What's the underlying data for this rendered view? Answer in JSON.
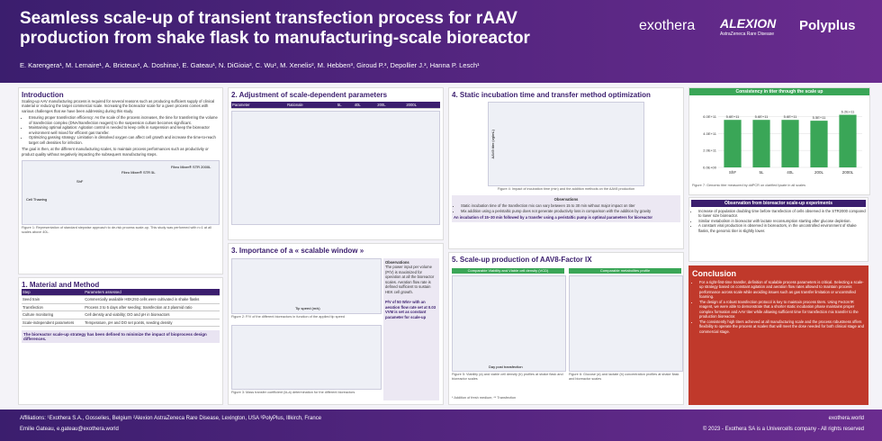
{
  "header": {
    "title": "Seamless scale-up of transient transfection process for rAAV production from shake flask to manufacturing-scale bioreactor",
    "authors": "E. Karengera¹, M. Lemaire¹, A. Bricteux¹, A. Doshina¹, E. Gateau¹, N. DiGioia², C. Wu², M. Xenelis², M. Hebben³, Giroud P.³, Depollier J.³, Hanna P. Lesch¹",
    "logos": [
      "exothera",
      "ALEXION",
      "AstraZeneca Rare Disease",
      "Polyplus"
    ]
  },
  "intro": {
    "heading": "Introduction",
    "text": "Scaling-up AAV manufacturing process is required for several reasons such as producing sufficient supply of clinical material or reducing the target commercial scale. Increasing the bioreactor scale for a given process comes with various challenges that we have been addressing during this study.",
    "bullets": [
      "Ensuring proper transfection efficiency: As the scale of the process increases, the time for transferring the volume of transfection complex (DNA/transfection reagent) to the suspension culture becomes significant.",
      "Maintaining optimal agitation: Agitation control is needed to keep cells in suspension and keep the bioreactor environment well mixed for efficient gas transfer.",
      "Optimizing gassing strategy: Limitation in dissolved oxygen can affect cell growth and increase the time-to-reach target cell densities for infection."
    ],
    "goal": "The goal is then, at the different manufacturing scales, to maintain process performances such as productivity or product quality without negatively impacting the subsequent manufacturing steps."
  },
  "figure1": {
    "labels": [
      "Cell Thawing",
      "ShF",
      "Fibro Mixer® STR 5L",
      "Fibro Mixer® STR 2000L"
    ],
    "caption": "Figure 1: Representation of standard stepwise approach to de-risk process scale-up. This study was performed with n=1 at all scales above 40L."
  },
  "material": {
    "heading": "1. Material and Method",
    "columns": [
      "Step",
      "Parameters assessed"
    ],
    "rows": [
      [
        "Seed train",
        "Commercially available HEK293 cells were cultivated in shake flasks"
      ],
      [
        "Transfection",
        "Process 3 to 5 days after seeding; transfection at 3 plasmid ratio"
      ],
      [
        "Culture monitoring",
        "Cell density and viability; DO and pH in bioreactors"
      ],
      [
        "Scale-independent parameters",
        "Temperature, pH and DO set points, seeding density"
      ]
    ],
    "note": "The bioreactor scale-up strategy has been defined to minimize the impact of bioprocess design differences."
  },
  "adjust": {
    "heading": "2. Adjustment of scale-dependent parameters",
    "columns": [
      "Parameter",
      "Rationale",
      "5L",
      "40L",
      "200L",
      "2000L"
    ]
  },
  "window": {
    "heading": "3. Importance of a « scalable window »",
    "xlabel": "Tip speed (m/s)",
    "caption": "Figure 2: P/V of the different bioreactors in function of the applied tip speed",
    "caption2": "Figure 3: Mass transfer coefficient (kLa) determination for the different bioreactors",
    "obs_heading": "Observations",
    "obs_text": "The power input per volume (P/V) is maximized for operation at all the bioreactor scales. Aeration flow rate is defined sufficient to sustain HEK cell growth.",
    "conclusion": "P/V of 50 W/m³ with an aeration flow rate set at 0.03 VVM is set as constant parameter for scale-up"
  },
  "static": {
    "heading": "4. Static incubation time and transfer method optimization",
    "ylabel": "AAV8 titer (vg/mL)",
    "caption": "Figure 4: Impact of incubation time (min) and the addition methods on the AAV8 production",
    "obs_heading": "Observations",
    "bullets": [
      "Static incubation time of the transfection mix can vary between 15 to 30 min without major impact on titer",
      "Mix addition using a peristaltic pump does not generate productivity loss in comparison with the addition by gravity"
    ],
    "conclusion": "An incubation of 15–30 min followed by a transfer using a peristaltic pump is optimal parameters for bioreactor"
  },
  "scaleup": {
    "heading": "5. Scale-up production of AAV8-Factor IX",
    "panel1": "Comparable Viability and Viable cell density (VCD)",
    "panel2": "Comparable metabolites profile",
    "xlabel": "Day post transfection",
    "caption1": "Figure 5: Viability (a) and viable cell density (b) profiles at shake flask and bioreactor scales",
    "caption2": "Figure 6: Glucose (a) and lactate (b) concentration profiles at shake flask and bioreactor scales",
    "note": "* Addition of fresh medium; ** Transfection"
  },
  "consistency": {
    "heading": "Consistency in titer through the scale up",
    "categories": [
      "ShF",
      "5L",
      "40L",
      "200L",
      "2000L"
    ],
    "values": [
      560000000000,
      560000000000,
      560000000000,
      550000000000,
      620000000000
    ],
    "value_labels": [
      "5.6E+11",
      "5.6E+11",
      "5.6E+11",
      "5.5E+11",
      "6.2E+11"
    ],
    "ylim": [
      0,
      700000000000
    ],
    "yticks": [
      {
        "value": 0,
        "label": "0.0E+00"
      },
      {
        "value": 200000000000,
        "label": "2.0E+11"
      },
      {
        "value": 400000000000,
        "label": "4.0E+11"
      },
      {
        "value": 600000000000,
        "label": "6.0E+11"
      }
    ],
    "color": "#3aa657",
    "caption": "Figure 7: Genomic titer measured by ddPCR on clarified lysate in all scales"
  },
  "observation": {
    "heading": "Observation from bioreactor scale-up experiments",
    "bullets": [
      "Increase of population doubling time before transfection of cells observed in the STR2000 compared to lower size bioreactor.",
      "Similar metabolism in bioreactor with lactate reconsumption starting after glucose depletion.",
      "A constant viral production is observed in bioreactors, in the uncontrolled environment of shake flasks, the genomic titer is slightly lower."
    ]
  },
  "conclusion": {
    "heading": "Conclusion",
    "bullets": [
      "For a right-first-time transfer, definition of scalable process parameters is critical. Selecting a scale-up strategy based on constant agitation and aeration flow rates allowed to maintain process performance across scale while avoiding issues such as gas transfer limitation or uncontrolled foaming.",
      "The design of a robust transfection protocol is key to maintain process titers. Using FectoVIR reagent, we were able to demonstrate that a shorter static incubation phase maintains proper complex formation and AAV titer while allowing sufficient time for transfection mix transfer to the production bioreactor.",
      "The consistently high titers achieved at all manufacturing scale and the process robustness offers flexibility to operate the process at scales that will meet the dose needed for both clinical stage and commercial stage."
    ]
  },
  "footer": {
    "affiliations": "Affiliations: ¹Exothera S.A., Gosselies, Belgium ²Alexion AstraZeneca Rare Disease, Lexington, USA ³PolyPlus, Illkirch, France",
    "contact": "Emilie Gateau, e.gateau@exothera.world",
    "website": "exothera.world",
    "copyright": "© 2023 - Exothera SA is a Univercells company - All rights reserved"
  }
}
